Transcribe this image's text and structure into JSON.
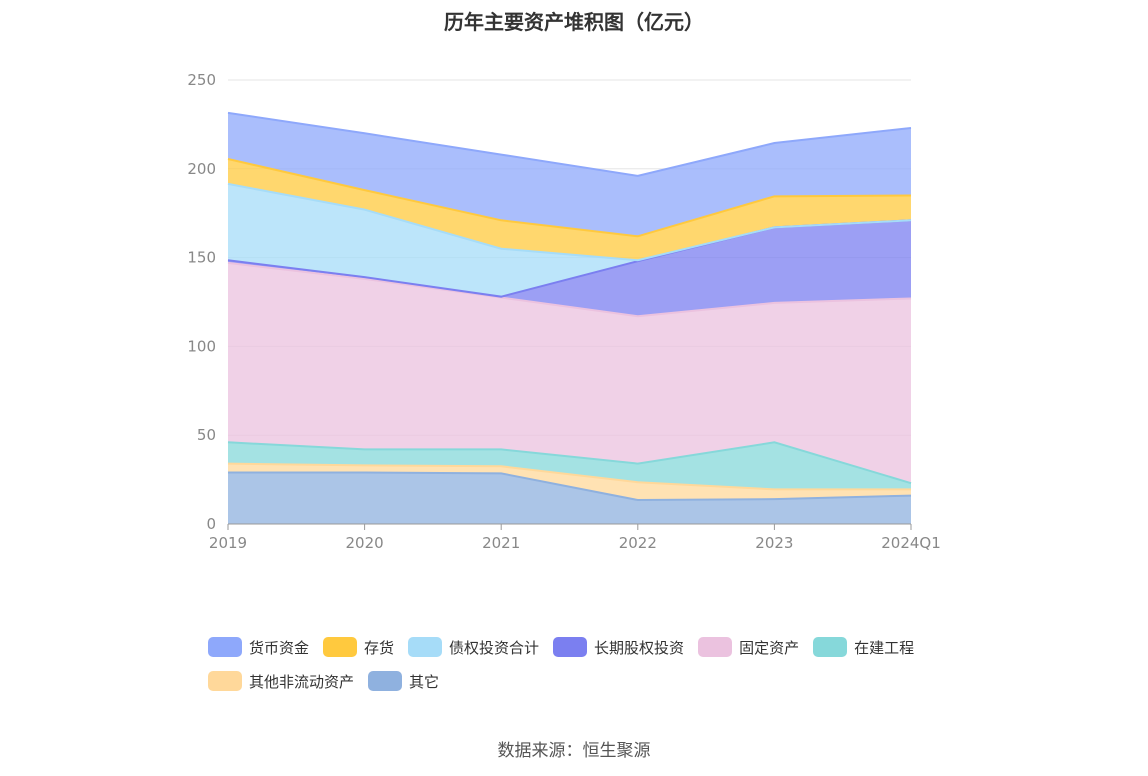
{
  "title": "历年主要资产堆积图（亿元）",
  "source": "数据来源：恒生聚源",
  "chart_data": {
    "type": "area",
    "stacked": true,
    "categories": [
      "2019",
      "2020",
      "2021",
      "2022",
      "2023",
      "2024Q1"
    ],
    "ylim": [
      0,
      250
    ],
    "yticks": [
      0,
      50,
      100,
      150,
      200,
      250
    ],
    "grid": true,
    "legend_position": "bottom",
    "series": [
      {
        "name": "其它",
        "color": "#8fb1df",
        "values": [
          29,
          29,
          28.5,
          13.5,
          14,
          16
        ]
      },
      {
        "name": "其他非流动资产",
        "color": "#ffd89a",
        "values": [
          5,
          4,
          4,
          10,
          5.5,
          3.5
        ]
      },
      {
        "name": "在建工程",
        "color": "#86d8da",
        "values": [
          12,
          9,
          9.5,
          10.5,
          26.5,
          3.5
        ]
      },
      {
        "name": "固定资产",
        "color": "#ebc2df",
        "values": [
          101,
          96,
          85.5,
          83,
          78.5,
          104
        ]
      },
      {
        "name": "长期股权投资",
        "color": "#7b7ff0",
        "values": [
          1.5,
          1,
          0.5,
          31,
          42.5,
          44
        ]
      },
      {
        "name": "债权投资合计",
        "color": "#a6dcf8",
        "values": [
          43,
          38,
          27,
          0.5,
          0,
          0
        ]
      },
      {
        "name": "存货",
        "color": "#ffc93e",
        "values": [
          14,
          11,
          16,
          13.5,
          17.5,
          14
        ]
      },
      {
        "name": "货币资金",
        "color": "#8ea8fb",
        "values": [
          26,
          32,
          37,
          34,
          30,
          38
        ]
      }
    ],
    "legend_order": [
      "货币资金",
      "存货",
      "债权投资合计",
      "长期股权投资",
      "固定资产",
      "在建工程",
      "其他非流动资产",
      "其它"
    ]
  }
}
